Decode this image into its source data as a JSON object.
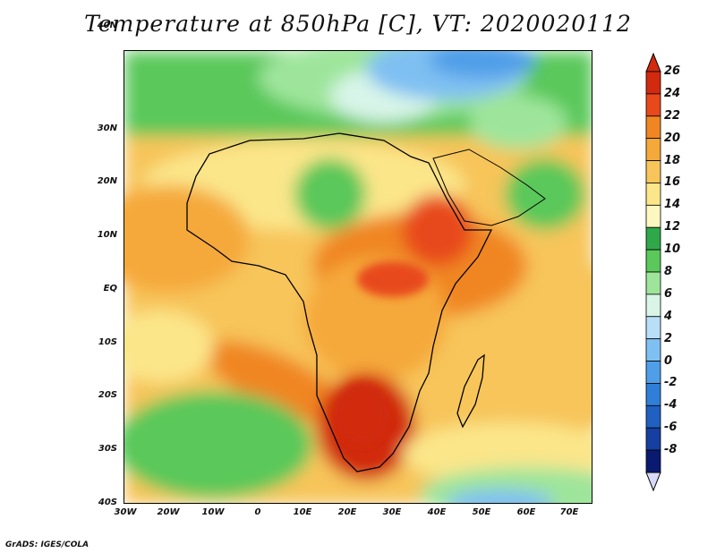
{
  "title": "Temperature at 850hPa [C], VT: 2020020112",
  "credit": "GrADS: IGES/COLA",
  "map": {
    "lat_ticks": [
      "40N",
      "30N",
      "20N",
      "10N",
      "EQ",
      "10S",
      "20S",
      "30S",
      "40S"
    ],
    "lon_ticks": [
      "30W",
      "20W",
      "10W",
      "0",
      "10E",
      "20E",
      "30E",
      "40E",
      "50E",
      "60E",
      "70E"
    ]
  },
  "colorbar": {
    "labels": [
      "26",
      "24",
      "22",
      "20",
      "18",
      "16",
      "14",
      "12",
      "10",
      "8",
      "6",
      "4",
      "2",
      "0",
      "-2",
      "-4",
      "-6",
      "-8"
    ],
    "colors": [
      "#d12a0f",
      "#e8481a",
      "#f08623",
      "#f5a93a",
      "#f7c55a",
      "#fbe68a",
      "#fef7c0",
      "#2fa84a",
      "#5ac85a",
      "#9ee59b",
      "#d8f5e8",
      "#b8def8",
      "#7fc0f2",
      "#4f9ee8",
      "#2f7fd8",
      "#1f60c0",
      "#153fa0",
      "#0a1a70"
    ]
  }
}
